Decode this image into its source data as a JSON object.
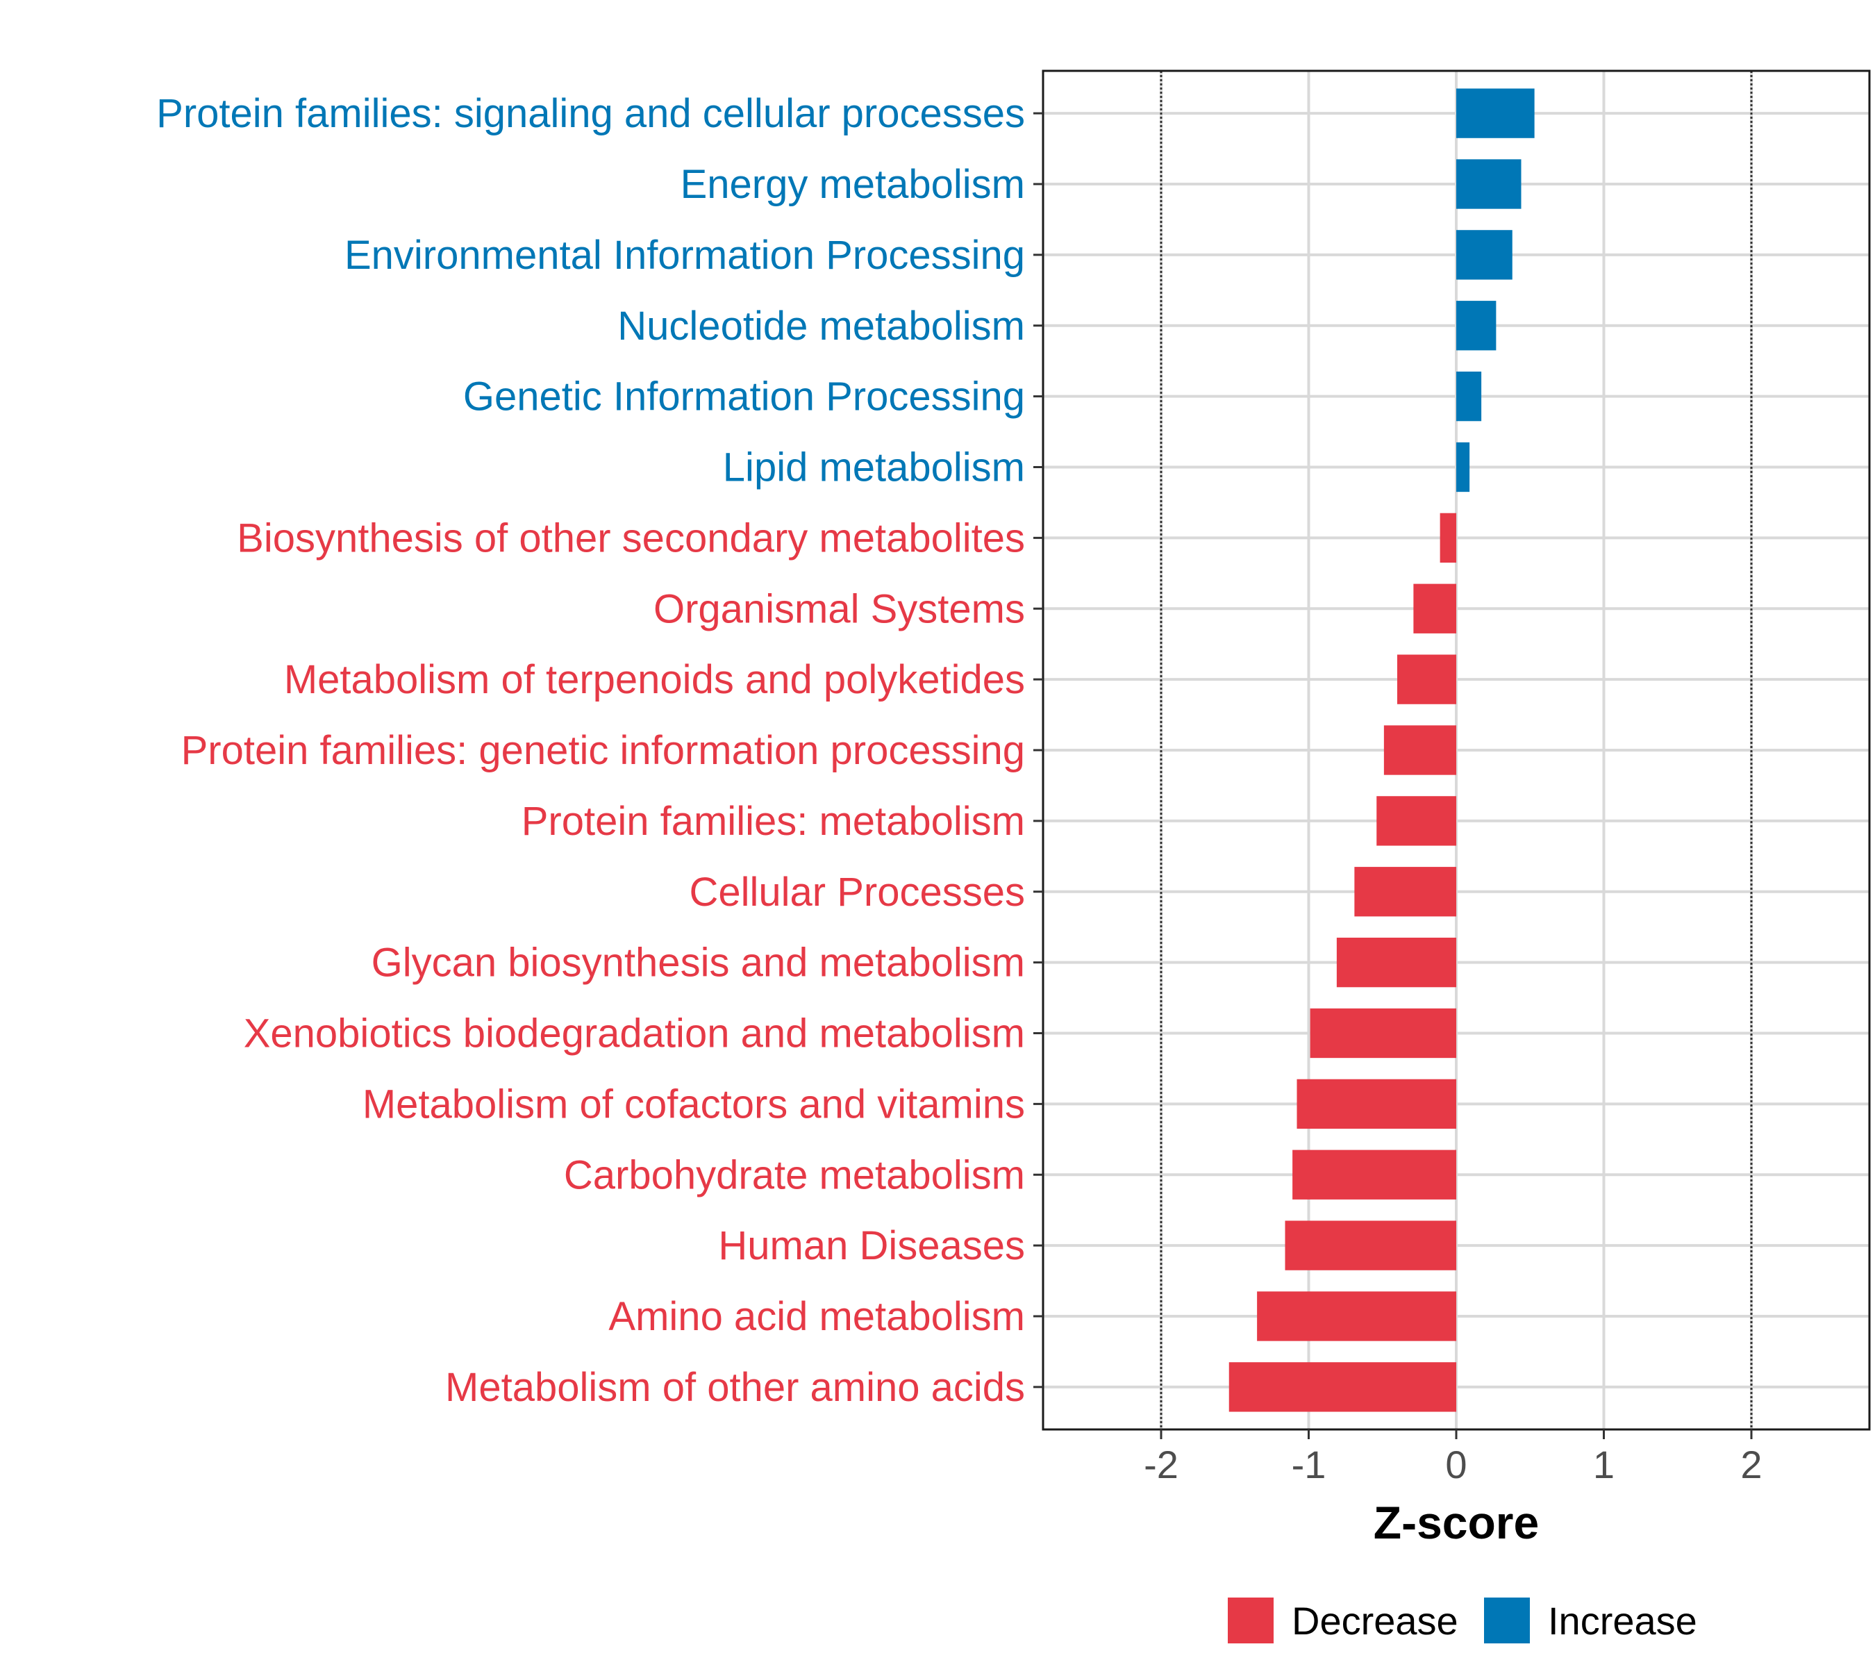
{
  "chart_data": {
    "type": "bar",
    "orientation": "horizontal",
    "title": "",
    "xlabel": "Z-score",
    "ylabel": "",
    "xlim": [
      -2.8,
      2.8
    ],
    "xticks": [
      -2,
      -1,
      0,
      1,
      2
    ],
    "xtick_labels": [
      "-2",
      "-1",
      "0",
      "1",
      "2"
    ],
    "reference_lines": [
      -2,
      2
    ],
    "grid": true,
    "categories": [
      "Protein families: signaling and cellular processes",
      "Energy metabolism",
      "Environmental Information Processing",
      "Nucleotide metabolism",
      "Genetic Information Processing",
      "Lipid metabolism",
      "Biosynthesis of other secondary metabolites",
      "Organismal Systems",
      "Metabolism of terpenoids and polyketides",
      "Protein families: genetic information processing",
      "Protein families: metabolism",
      "Cellular Processes",
      "Glycan biosynthesis and metabolism",
      "Xenobiotics biodegradation and metabolism",
      "Metabolism of cofactors and vitamins",
      "Carbohydrate metabolism",
      "Human Diseases",
      "Amino acid metabolism",
      "Metabolism of other amino acids"
    ],
    "values": [
      0.53,
      0.44,
      0.38,
      0.27,
      0.17,
      0.09,
      -0.11,
      -0.29,
      -0.4,
      -0.49,
      -0.54,
      -0.69,
      -0.81,
      -0.99,
      -1.08,
      -1.11,
      -1.16,
      -1.35,
      -1.54
    ],
    "legend": {
      "position": "bottom",
      "entries": [
        {
          "label": "Decrease",
          "color": "#E63946"
        },
        {
          "label": "Increase",
          "color": "#0077B6"
        }
      ]
    },
    "colors": {
      "decrease": "#E63946",
      "increase": "#0077B6"
    }
  }
}
